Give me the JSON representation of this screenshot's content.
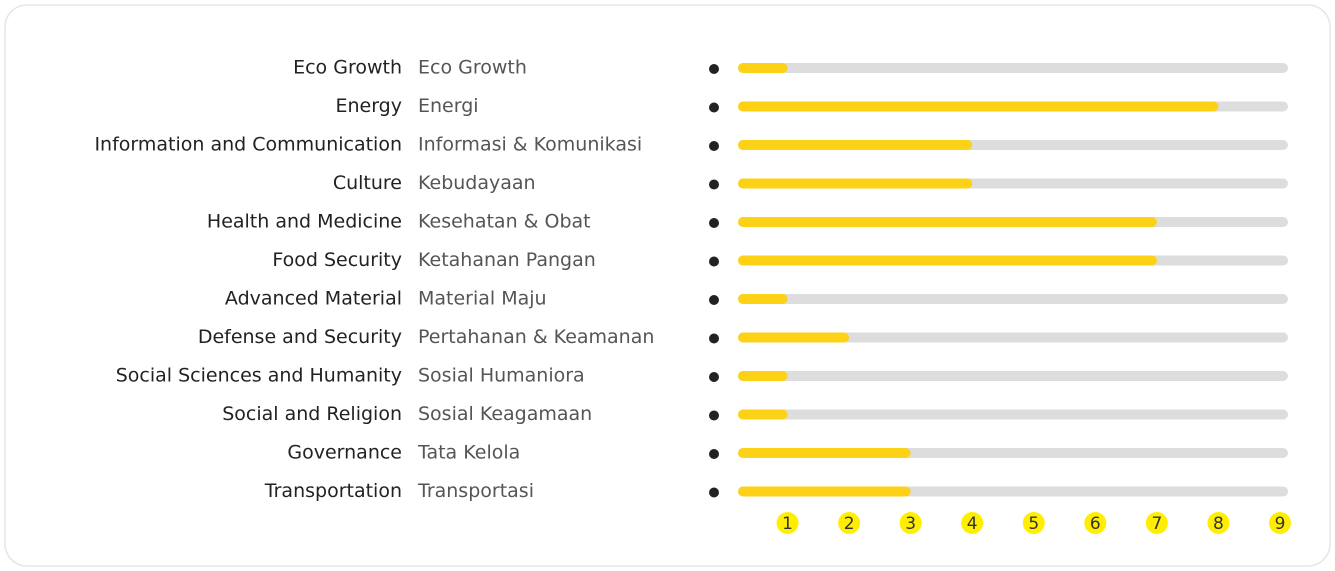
{
  "chart_data": {
    "type": "bar",
    "orientation": "horizontal",
    "categories": [
      "Eco Growth",
      "Energy",
      "Information and Communication",
      "Culture",
      "Health and Medicine",
      "Food Security",
      "Advanced Material",
      "Defense and Security",
      "Social Sciences and Humanity",
      "Social and Religion",
      "Governance",
      "Transportation"
    ],
    "category_translations": [
      "Eco Growth",
      "Energi",
      "Informasi & Komunikasi",
      "Kebudayaan",
      "Kesehatan & Obat",
      "Ketahanan Pangan",
      "Material Maju",
      "Pertahanan & Keamanan",
      "Sosial Humaniora",
      "Sosial Keagamaan",
      "Tata Kelola",
      "Transportasi"
    ],
    "values": [
      1,
      8,
      4,
      4,
      7,
      7,
      1,
      2,
      1,
      1,
      3,
      3
    ],
    "color": "#fcd116",
    "track_color": "#dddddd",
    "tick_color": "#ffee00",
    "xlim": [
      0,
      9
    ],
    "xticks": [
      1,
      2,
      3,
      4,
      5,
      6,
      7,
      8,
      9
    ]
  }
}
